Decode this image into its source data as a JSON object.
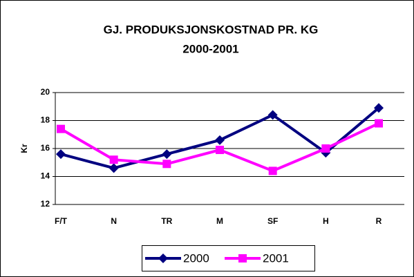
{
  "chart_data": {
    "type": "line",
    "title": "GJ. PRODUKSJONSKOSTNAD PR. KG",
    "subtitle": "2000-2001",
    "ylabel": "Kr",
    "categories": [
      "F/T",
      "N",
      "TR",
      "M",
      "SF",
      "H",
      "R"
    ],
    "series": [
      {
        "name": "2000",
        "color": "#000080",
        "marker": "diamond",
        "values": [
          15.6,
          14.6,
          15.6,
          16.6,
          18.4,
          15.7,
          18.9
        ]
      },
      {
        "name": "2001",
        "color": "#ff00ff",
        "marker": "square",
        "values": [
          17.4,
          15.2,
          14.9,
          15.9,
          14.4,
          16.0,
          17.8
        ]
      }
    ],
    "ylim": [
      12,
      20
    ],
    "yticks": [
      12,
      14,
      16,
      18,
      20
    ],
    "grid": true,
    "legend": "bottom"
  }
}
